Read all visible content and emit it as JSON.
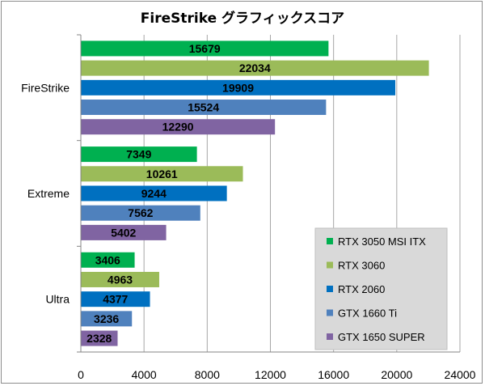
{
  "chart_data": {
    "type": "bar",
    "orientation": "horizontal",
    "title": "FireStrike グラフィックスコア",
    "categories": [
      "FireStrike",
      "Extreme",
      "Ultra"
    ],
    "series": [
      {
        "name": "RTX 3050 MSI ITX",
        "color": "#00b050",
        "values": [
          15679,
          7349,
          3406
        ]
      },
      {
        "name": "RTX 3060",
        "color": "#9bbb59",
        "values": [
          22034,
          10261,
          4963
        ]
      },
      {
        "name": "RTX 2060",
        "color": "#0070c0",
        "values": [
          19909,
          9244,
          4377
        ]
      },
      {
        "name": "GTX 1660 Ti",
        "color": "#4f81bd",
        "values": [
          15524,
          7562,
          3236
        ]
      },
      {
        "name": "GTX 1650 SUPER",
        "color": "#8064a2",
        "values": [
          12290,
          5402,
          2328
        ]
      }
    ],
    "xlim": [
      0,
      24000
    ],
    "xticks": [
      "0",
      "4000",
      "8000",
      "12000",
      "16000",
      "20000",
      "24000"
    ],
    "grid": true,
    "legend_position": "bottom-right",
    "legend_background": "#d9d9d9"
  }
}
